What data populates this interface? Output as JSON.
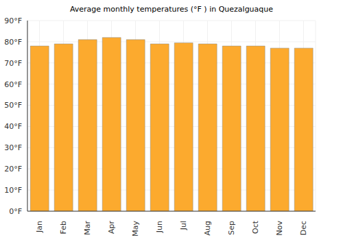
{
  "chart_data": {
    "type": "bar",
    "title": "Average monthly temperatures (°F ) in Quezalguaque",
    "categories": [
      "Jan",
      "Feb",
      "Mar",
      "Apr",
      "May",
      "Jun",
      "Jul",
      "Aug",
      "Sep",
      "Oct",
      "Nov",
      "Dec"
    ],
    "values": [
      78,
      79,
      81,
      82,
      81,
      79,
      79.5,
      79,
      78,
      78,
      77,
      77
    ],
    "color": "#fcaa2e",
    "ylim": [
      0,
      90
    ],
    "yticks": [
      {
        "value": 0,
        "label": "0°F"
      },
      {
        "value": 10,
        "label": "10°F"
      },
      {
        "value": 20,
        "label": "20°F"
      },
      {
        "value": 30,
        "label": "30°F"
      },
      {
        "value": 40,
        "label": "40°F"
      },
      {
        "value": 50,
        "label": "50°F"
      },
      {
        "value": 60,
        "label": "60°F"
      },
      {
        "value": 70,
        "label": "70°F"
      },
      {
        "value": 80,
        "label": "80°F"
      },
      {
        "value": 90,
        "label": "90°F"
      }
    ],
    "grid": true
  }
}
